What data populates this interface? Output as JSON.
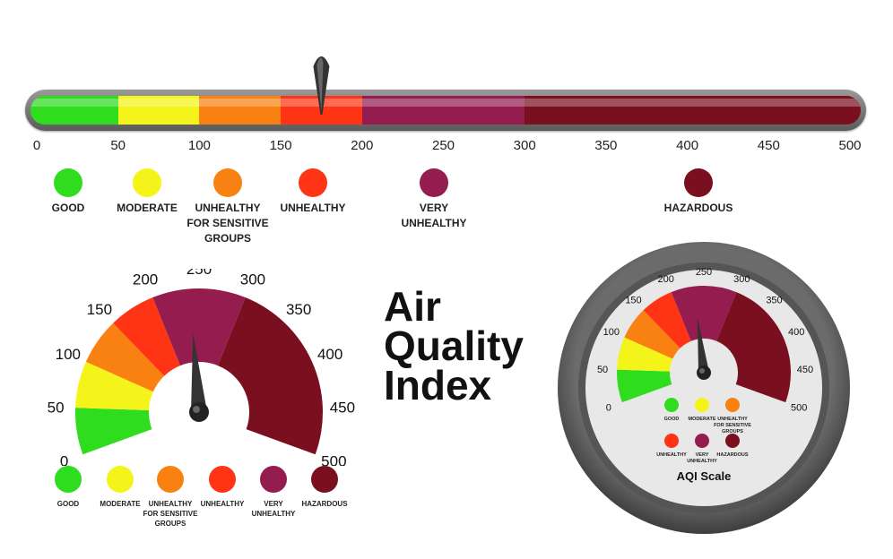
{
  "title": {
    "line1": "Air",
    "line2": "Quality",
    "line3": "Index"
  },
  "colors": {
    "good": "#2fdc1e",
    "moderate": "#f4f41a",
    "sensitive": "#f98112",
    "unhealthy": "#ff3415",
    "very_unhealthy": "#951c4f",
    "hazardous": "#7a0f1f"
  },
  "categories": [
    {
      "key": "good",
      "label_lines": [
        "GOOD"
      ],
      "range": [
        0,
        50
      ]
    },
    {
      "key": "moderate",
      "label_lines": [
        "MODERATE"
      ],
      "range": [
        50,
        100
      ]
    },
    {
      "key": "sensitive",
      "label_lines": [
        "UNHEALTHY",
        "FOR SENSITIVE",
        "GROUPS"
      ],
      "range": [
        100,
        150
      ]
    },
    {
      "key": "unhealthy",
      "label_lines": [
        "UNHEALTHY"
      ],
      "range": [
        150,
        200
      ]
    },
    {
      "key": "very_unhealthy",
      "label_lines": [
        "VERY",
        "UNHEALTHY"
      ],
      "range": [
        200,
        300
      ]
    },
    {
      "key": "hazardous",
      "label_lines": [
        "HAZARDOUS"
      ],
      "range": [
        300,
        500
      ]
    }
  ],
  "scale": {
    "min": 0,
    "max": 500,
    "ticks": [
      "0",
      "50",
      "100",
      "150",
      "200",
      "250",
      "300",
      "350",
      "400",
      "450",
      "500"
    ]
  },
  "linear_bar": {
    "pointer_value": 175
  },
  "left_gauge": {
    "needle_value": 240
  },
  "right_gauge": {
    "needle_value": 235,
    "caption": "AQI Scale"
  }
}
